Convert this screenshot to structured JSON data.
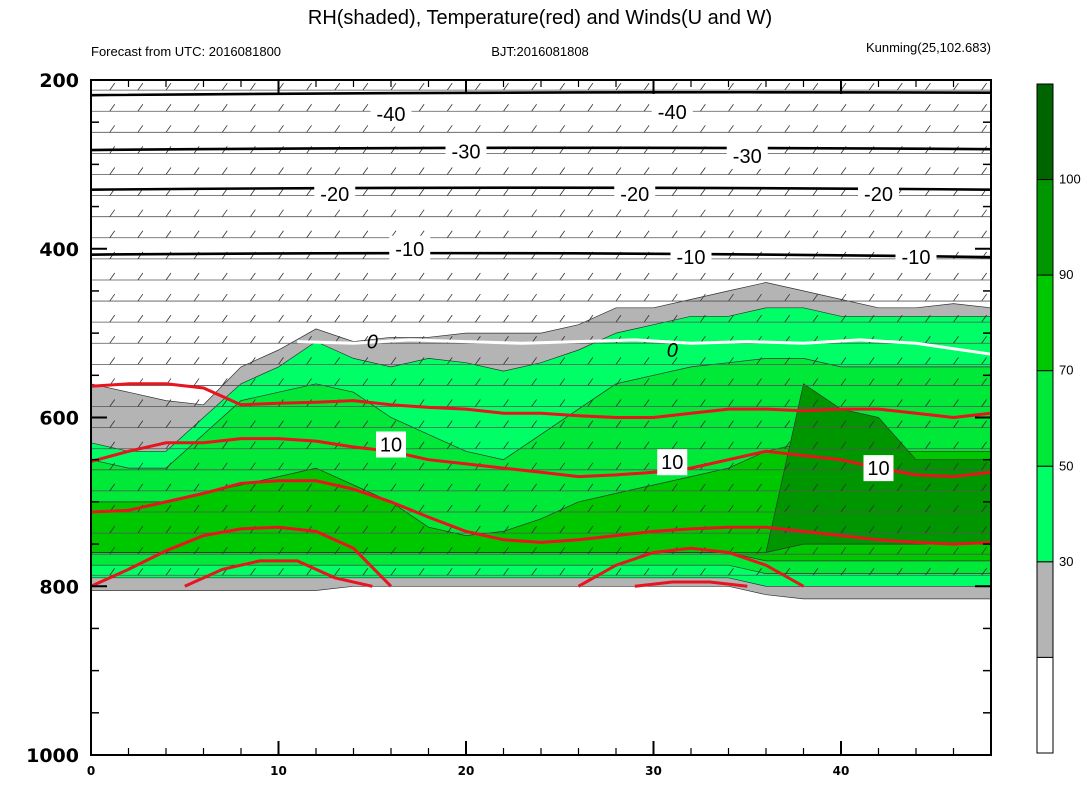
{
  "chart_data": {
    "type": "heatmap",
    "title": "RH(shaded), Temperature(red) and Winds(U and W)",
    "subtitle_left": "Forecast from UTC: 2016081800",
    "subtitle_center": "BJT:2016081808",
    "subtitle_right": "Kunming(25,102.683)",
    "x_range": [
      0,
      48
    ],
    "x_ticks": [
      "0",
      "10",
      "20",
      "30",
      "40"
    ],
    "y_range": [
      200,
      1000
    ],
    "y_axis": "pressure (inverted)",
    "y_ticks": [
      "200",
      "400",
      "600",
      "800",
      "1000"
    ],
    "colorbar": {
      "levels": [
        "30",
        "50",
        "70",
        "90",
        "100"
      ],
      "colors": [
        "#ffffff",
        "#b4b4b4",
        "#00ff66",
        "#00e838",
        "#00c800",
        "#009600",
        "#006400"
      ]
    },
    "rh_bands": {
      "x": [
        0,
        2,
        4,
        6,
        8,
        10,
        12,
        14,
        16,
        18,
        20,
        22,
        24,
        26,
        28,
        30,
        32,
        34,
        36,
        38,
        40,
        42,
        44,
        46,
        48
      ],
      "bands": [
        {
          "level": "30-50",
          "top": [
            560,
            570,
            580,
            585,
            540,
            520,
            495,
            510,
            505,
            505,
            500,
            500,
            500,
            490,
            470,
            470,
            460,
            450,
            440,
            450,
            460,
            470,
            470,
            465,
            470
          ],
          "bottom": [
            805,
            805,
            805,
            805,
            805,
            805,
            805,
            800,
            800,
            800,
            800,
            800,
            800,
            800,
            800,
            800,
            800,
            800,
            810,
            815,
            815,
            815,
            815,
            815,
            815
          ]
        },
        {
          "level": "50-70",
          "top": [
            630,
            640,
            640,
            600,
            560,
            540,
            510,
            530,
            540,
            530,
            535,
            545,
            535,
            520,
            500,
            490,
            480,
            480,
            470,
            470,
            480,
            480,
            480,
            480,
            480
          ],
          "bottom": [
            790,
            790,
            790,
            790,
            790,
            790,
            790,
            790,
            790,
            790,
            790,
            790,
            790,
            790,
            790,
            790,
            790,
            790,
            800,
            800,
            800,
            800,
            800,
            800,
            800
          ]
        },
        {
          "level": "70-90",
          "top": [
            650,
            660,
            660,
            620,
            580,
            570,
            560,
            570,
            600,
            620,
            640,
            650,
            620,
            590,
            560,
            550,
            540,
            535,
            530,
            530,
            540,
            540,
            540,
            540,
            540
          ],
          "bottom": [
            775,
            775,
            775,
            775,
            775,
            775,
            775,
            775,
            775,
            775,
            775,
            775,
            775,
            775,
            775,
            775,
            775,
            775,
            785,
            785,
            785,
            785,
            785,
            785,
            785
          ]
        },
        {
          "level": "90-100",
          "top": [
            700,
            700,
            700,
            690,
            680,
            670,
            660,
            680,
            700,
            730,
            740,
            735,
            720,
            700,
            690,
            680,
            670,
            660,
            640,
            630,
            640,
            640,
            640,
            640,
            640
          ],
          "bottom": [
            760,
            760,
            760,
            760,
            760,
            760,
            760,
            760,
            760,
            760,
            760,
            760,
            760,
            760,
            760,
            760,
            760,
            760,
            770,
            770,
            770,
            770,
            770,
            770,
            770
          ]
        },
        {
          "level": ">100",
          "top": [
            760,
            760,
            760,
            760,
            760,
            760,
            760,
            760,
            760,
            760,
            760,
            760,
            760,
            760,
            760,
            760,
            760,
            760,
            760,
            560,
            590,
            600,
            650,
            650,
            650
          ],
          "bottom": [
            760,
            760,
            760,
            760,
            760,
            760,
            760,
            760,
            760,
            760,
            760,
            760,
            760,
            760,
            760,
            760,
            760,
            760,
            760,
            750,
            750,
            750,
            750,
            750,
            750
          ]
        }
      ]
    },
    "temperature_contours": [
      {
        "label": "10",
        "x": [
          0,
          2,
          4,
          6,
          8,
          10,
          12,
          14,
          16,
          18,
          20,
          22,
          24,
          26,
          28,
          30,
          32,
          34,
          36,
          38,
          40,
          42,
          44,
          46,
          48
        ],
        "y": [
          652,
          640,
          630,
          630,
          625,
          625,
          628,
          635,
          640,
          650,
          655,
          660,
          665,
          670,
          668,
          665,
          660,
          650,
          640,
          645,
          650,
          660,
          668,
          670,
          665
        ]
      },
      {
        "label": "",
        "x": [
          0,
          2,
          4,
          6,
          8,
          10,
          12,
          14,
          16,
          18,
          20,
          22,
          24,
          26,
          28,
          30,
          32,
          34,
          36,
          38,
          40,
          42,
          44,
          46,
          48
        ],
        "y": [
          563,
          560,
          560,
          565,
          585,
          583,
          582,
          580,
          585,
          588,
          590,
          595,
          595,
          598,
          600,
          600,
          595,
          590,
          590,
          592,
          590,
          590,
          595,
          600,
          595
        ]
      },
      {
        "label": "",
        "x": [
          0,
          2,
          4,
          6,
          8,
          10,
          12,
          14,
          16,
          18,
          20,
          22,
          24,
          26,
          28,
          30,
          32,
          34,
          36,
          38,
          40,
          42,
          44,
          46,
          48
        ],
        "y": [
          712,
          710,
          700,
          690,
          678,
          675,
          675,
          685,
          700,
          718,
          735,
          745,
          748,
          745,
          740,
          735,
          732,
          730,
          730,
          735,
          740,
          745,
          748,
          750,
          748
        ]
      },
      {
        "label": "",
        "x": [
          0,
          2,
          4,
          6,
          8,
          10,
          12,
          14,
          16
        ],
        "y": [
          800,
          780,
          758,
          740,
          732,
          730,
          735,
          755,
          800
        ]
      },
      {
        "label": "",
        "x": [
          5,
          7,
          9,
          11,
          13,
          15
        ],
        "y": [
          800,
          780,
          770,
          770,
          790,
          800
        ]
      },
      {
        "label": "",
        "x": [
          26,
          28,
          30,
          32,
          34,
          36,
          38
        ],
        "y": [
          800,
          775,
          760,
          755,
          760,
          775,
          800
        ]
      },
      {
        "label": "",
        "x": [
          29,
          31,
          33,
          35
        ],
        "y": [
          800,
          795,
          795,
          800
        ]
      }
    ],
    "temperature_contour_labels": [
      {
        "text": "10",
        "x": 16,
        "y": 632
      },
      {
        "text": "10",
        "x": 31,
        "y": 653
      },
      {
        "text": "10",
        "x": 42,
        "y": 660
      }
    ],
    "isotherm_0": {
      "label": "0",
      "x": [
        11,
        14,
        17,
        20,
        23,
        26,
        29,
        32,
        35,
        38,
        41,
        44,
        48
      ],
      "y": [
        510,
        512,
        508,
        510,
        512,
        510,
        508,
        512,
        510,
        512,
        508,
        512,
        525
      ]
    },
    "other_contours": [
      {
        "label": "-40",
        "y_left": 218,
        "y_right": 215
      },
      {
        "label": "-30",
        "y_left": 283,
        "y_right": 282
      },
      {
        "label": "-20",
        "y_left": 330,
        "y_right": 330
      },
      {
        "label": "-10",
        "y_left": 407,
        "y_right": 410
      }
    ],
    "other_contour_labels": [
      {
        "text": "-40",
        "x": 16,
        "y": 240
      },
      {
        "text": "-40",
        "x": 31,
        "y": 238
      },
      {
        "text": "-30",
        "x": 20,
        "y": 285
      },
      {
        "text": "-30",
        "x": 35,
        "y": 290
      },
      {
        "text": "-20",
        "x": 13,
        "y": 335
      },
      {
        "text": "-20",
        "x": 29,
        "y": 335
      },
      {
        "text": "-20",
        "x": 42,
        "y": 335
      },
      {
        "text": "-10",
        "x": 17,
        "y": 400
      },
      {
        "text": "-10",
        "x": 32,
        "y": 410
      },
      {
        "text": "-10",
        "x": 44,
        "y": 410
      }
    ],
    "zero_labels": [
      {
        "text": "0",
        "x": 15,
        "y": 510
      },
      {
        "text": "0",
        "x": 31,
        "y": 520
      }
    ]
  }
}
